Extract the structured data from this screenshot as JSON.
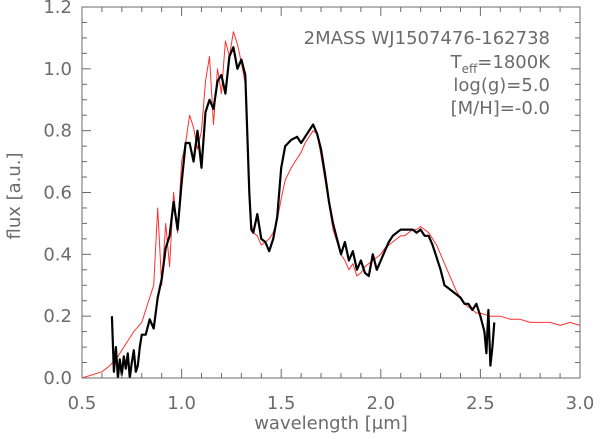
{
  "chart_data": {
    "type": "line",
    "title": "",
    "xlabel": "wavelength [μm]",
    "ylabel": "flux [a.u.]",
    "xlim": [
      0.5,
      3.0
    ],
    "ylim": [
      0.0,
      1.2
    ],
    "xticks": [
      0.5,
      1.0,
      1.5,
      2.0,
      2.5,
      3.0
    ],
    "xtick_labels": [
      "0.5",
      "1.0",
      "1.5",
      "2.0",
      "2.5",
      "3.0"
    ],
    "yticks": [
      0.0,
      0.2,
      0.4,
      0.6,
      0.8,
      1.0,
      1.2
    ],
    "ytick_labels": [
      "0.0",
      "0.2",
      "0.4",
      "0.6",
      "0.8",
      "1.0",
      "1.2"
    ],
    "grid": false,
    "annotations": {
      "object": "2MASS WJ1507476-162738",
      "teff_prefix": "T",
      "teff_sub": "eff",
      "teff_value": "=1800K",
      "logg": "log(g)=5.0",
      "metallicity": "[M/H]=-0.0"
    },
    "colors": {
      "observed": "#000000",
      "model": "#ff3030",
      "axes": "#6b6b6b"
    },
    "series": [
      {
        "key": "observed",
        "x": [
          0.65,
          0.66,
          0.67,
          0.68,
          0.69,
          0.7,
          0.71,
          0.72,
          0.73,
          0.74,
          0.75,
          0.76,
          0.77,
          0.78,
          0.79,
          0.8,
          0.82,
          0.84,
          0.86,
          0.88,
          0.9,
          0.92,
          0.94,
          0.96,
          0.98,
          1.0,
          1.02,
          1.04,
          1.06,
          1.08,
          1.1,
          1.12,
          1.14,
          1.16,
          1.18,
          1.2,
          1.22,
          1.24,
          1.26,
          1.28,
          1.3,
          1.32,
          1.34,
          1.35,
          1.36,
          1.38,
          1.4,
          1.42,
          1.44,
          1.46,
          1.48,
          1.5,
          1.52,
          1.55,
          1.58,
          1.6,
          1.62,
          1.64,
          1.66,
          1.68,
          1.7,
          1.72,
          1.74,
          1.76,
          1.78,
          1.8,
          1.82,
          1.84,
          1.86,
          1.88,
          1.9,
          1.92,
          1.94,
          1.96,
          1.98,
          2.0,
          2.02,
          2.04,
          2.06,
          2.08,
          2.1,
          2.12,
          2.14,
          2.16,
          2.18,
          2.2,
          2.22,
          2.24,
          2.26,
          2.28,
          2.3,
          2.32,
          2.34,
          2.36,
          2.38,
          2.4,
          2.42,
          2.44,
          2.46,
          2.48,
          2.5,
          2.52,
          2.53,
          2.54,
          2.55,
          2.56,
          2.57
        ],
        "y": [
          0.2,
          0.02,
          0.1,
          0.0,
          0.06,
          0.01,
          0.07,
          0.03,
          0.08,
          0.0,
          0.05,
          0.09,
          0.02,
          0.04,
          0.1,
          0.14,
          0.14,
          0.19,
          0.16,
          0.26,
          0.32,
          0.42,
          0.46,
          0.57,
          0.48,
          0.63,
          0.76,
          0.76,
          0.7,
          0.8,
          0.68,
          0.86,
          0.9,
          0.87,
          0.96,
          0.98,
          0.92,
          1.04,
          1.07,
          1.0,
          1.03,
          0.98,
          0.6,
          0.48,
          0.47,
          0.53,
          0.45,
          0.44,
          0.41,
          0.45,
          0.52,
          0.68,
          0.75,
          0.77,
          0.78,
          0.76,
          0.78,
          0.8,
          0.82,
          0.79,
          0.74,
          0.66,
          0.57,
          0.5,
          0.45,
          0.4,
          0.44,
          0.38,
          0.41,
          0.35,
          0.38,
          0.34,
          0.33,
          0.4,
          0.35,
          0.38,
          0.41,
          0.44,
          0.46,
          0.47,
          0.48,
          0.48,
          0.48,
          0.48,
          0.47,
          0.48,
          0.46,
          0.46,
          0.43,
          0.39,
          0.35,
          0.3,
          0.29,
          0.28,
          0.27,
          0.26,
          0.24,
          0.24,
          0.22,
          0.24,
          0.2,
          0.15,
          0.08,
          0.22,
          0.04,
          0.1,
          0.18
        ]
      },
      {
        "key": "model",
        "x": [
          0.5,
          0.55,
          0.6,
          0.64,
          0.68,
          0.72,
          0.76,
          0.8,
          0.82,
          0.84,
          0.86,
          0.88,
          0.9,
          0.92,
          0.94,
          0.96,
          0.98,
          1.0,
          1.02,
          1.04,
          1.06,
          1.08,
          1.1,
          1.12,
          1.14,
          1.16,
          1.18,
          1.2,
          1.22,
          1.24,
          1.26,
          1.28,
          1.3,
          1.32,
          1.34,
          1.35,
          1.36,
          1.38,
          1.4,
          1.42,
          1.44,
          1.46,
          1.48,
          1.5,
          1.52,
          1.55,
          1.58,
          1.6,
          1.62,
          1.64,
          1.66,
          1.68,
          1.7,
          1.72,
          1.74,
          1.76,
          1.78,
          1.8,
          1.82,
          1.84,
          1.86,
          1.88,
          1.9,
          1.92,
          1.94,
          1.96,
          1.98,
          2.0,
          2.02,
          2.04,
          2.06,
          2.08,
          2.1,
          2.12,
          2.14,
          2.16,
          2.18,
          2.2,
          2.22,
          2.24,
          2.26,
          2.28,
          2.3,
          2.32,
          2.34,
          2.36,
          2.38,
          2.4,
          2.42,
          2.44,
          2.46,
          2.48,
          2.5,
          2.55,
          2.6,
          2.65,
          2.7,
          2.75,
          2.8,
          2.85,
          2.9,
          2.95,
          3.0
        ],
        "y": [
          0.0,
          0.01,
          0.02,
          0.04,
          0.07,
          0.11,
          0.15,
          0.18,
          0.22,
          0.26,
          0.3,
          0.55,
          0.3,
          0.5,
          0.36,
          0.6,
          0.47,
          0.7,
          0.76,
          0.85,
          0.81,
          0.74,
          0.8,
          0.96,
          1.04,
          0.82,
          1.0,
          0.92,
          1.09,
          1.04,
          1.12,
          1.08,
          1.02,
          0.95,
          0.58,
          0.5,
          0.47,
          0.46,
          0.43,
          0.44,
          0.45,
          0.47,
          0.51,
          0.58,
          0.64,
          0.68,
          0.71,
          0.73,
          0.76,
          0.78,
          0.8,
          0.79,
          0.72,
          0.64,
          0.56,
          0.48,
          0.44,
          0.4,
          0.38,
          0.35,
          0.37,
          0.33,
          0.34,
          0.36,
          0.37,
          0.38,
          0.39,
          0.4,
          0.42,
          0.43,
          0.44,
          0.45,
          0.46,
          0.46,
          0.47,
          0.48,
          0.48,
          0.49,
          0.48,
          0.47,
          0.45,
          0.43,
          0.4,
          0.37,
          0.34,
          0.31,
          0.28,
          0.26,
          0.24,
          0.23,
          0.22,
          0.21,
          0.21,
          0.2,
          0.2,
          0.19,
          0.19,
          0.18,
          0.18,
          0.18,
          0.17,
          0.18,
          0.17
        ]
      }
    ]
  }
}
